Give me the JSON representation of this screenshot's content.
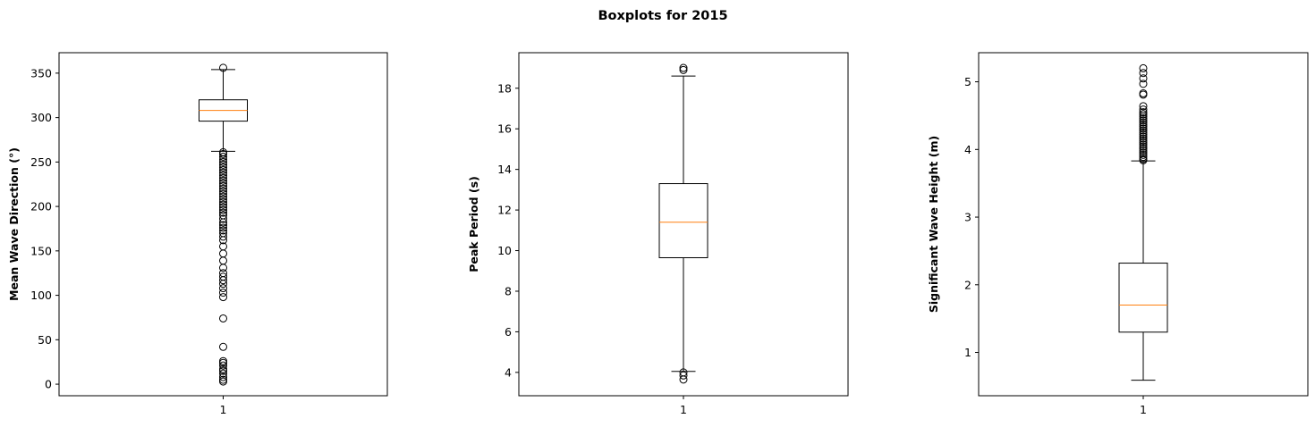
{
  "figure_title": "Boxplots for 2015",
  "colors": {
    "median": "#ff7f0e",
    "box": "#000000",
    "outlier": "#000000",
    "background": "#ffffff"
  },
  "chart_data": [
    {
      "type": "boxplot",
      "ylabel": "Mean Wave Direction (°)",
      "categories": [
        "1"
      ],
      "ylim": [
        -13,
        373
      ],
      "yticks": [
        0,
        50,
        100,
        150,
        200,
        250,
        300,
        350
      ],
      "box": {
        "whisker_low": 262,
        "q1": 296,
        "median": 308,
        "q3": 320,
        "whisker_high": 354
      },
      "outliers": [
        356,
        261,
        259,
        256,
        253,
        250,
        247,
        244,
        241,
        238,
        235,
        232,
        229,
        226,
        223,
        220,
        217,
        214,
        211,
        208,
        205,
        202,
        199,
        196,
        193,
        190,
        186,
        182,
        179,
        176,
        173,
        170,
        166,
        162,
        155,
        147,
        139,
        131,
        125,
        121,
        117,
        113,
        108,
        103,
        98,
        74,
        42,
        26,
        24,
        21,
        17,
        15,
        12,
        8,
        5,
        3
      ]
    },
    {
      "type": "boxplot",
      "ylabel": "Peak Period (s)",
      "categories": [
        "1"
      ],
      "ylim": [
        2.85,
        19.75
      ],
      "yticks": [
        4,
        6,
        8,
        10,
        12,
        14,
        16,
        18
      ],
      "box": {
        "whisker_low": 4.05,
        "q1": 9.65,
        "median": 11.4,
        "q3": 13.3,
        "whisker_high": 18.6
      },
      "outliers": [
        19.0,
        18.9,
        4.0,
        3.85,
        3.65
      ]
    },
    {
      "type": "boxplot",
      "ylabel": "Significant Wave Height (m)",
      "categories": [
        "1"
      ],
      "ylim": [
        0.36,
        5.43
      ],
      "yticks": [
        1,
        2,
        3,
        4,
        5
      ],
      "box": {
        "whisker_low": 0.59,
        "q1": 1.3,
        "median": 1.7,
        "q3": 2.32,
        "whisker_high": 3.83
      },
      "outliers": [
        5.2,
        5.13,
        5.05,
        4.97,
        4.83,
        4.81,
        4.64,
        4.59,
        4.55,
        4.52,
        4.49,
        4.46,
        4.43,
        4.4,
        4.37,
        4.34,
        4.31,
        4.28,
        4.25,
        4.22,
        4.19,
        4.16,
        4.13,
        4.1,
        4.07,
        4.04,
        4.01,
        3.98,
        3.95,
        3.92,
        3.89,
        3.86,
        3.84
      ]
    }
  ]
}
